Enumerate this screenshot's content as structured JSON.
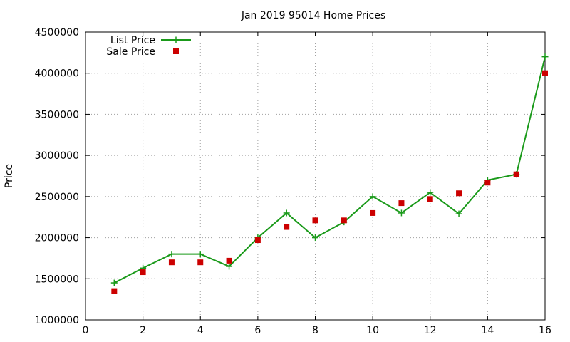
{
  "chart_data": {
    "type": "line",
    "title": "Jan 2019 95014 Home Prices",
    "xlabel": "",
    "ylabel": "Price",
    "xlim": [
      0,
      16
    ],
    "ylim": [
      1000000,
      4500000
    ],
    "x_ticks": [
      "0",
      "2",
      "4",
      "6",
      "8",
      "10",
      "12",
      "14",
      "16"
    ],
    "y_ticks": [
      "1000000",
      "1500000",
      "2000000",
      "2500000",
      "3000000",
      "3500000",
      "4000000",
      "4500000"
    ],
    "grid": true,
    "legend_position": "top-left",
    "series": [
      {
        "name": "List Price",
        "style": "line+cross",
        "color": "#1a9a1a",
        "x": [
          1,
          2,
          3,
          4,
          5,
          6,
          7,
          8,
          9,
          10,
          11,
          12,
          13,
          14,
          15,
          16
        ],
        "values": [
          1450000,
          1630000,
          1800000,
          1800000,
          1650000,
          2000000,
          2300000,
          2000000,
          2190000,
          2500000,
          2300000,
          2550000,
          2290000,
          2700000,
          2770000,
          4200000
        ]
      },
      {
        "name": "Sale Price",
        "style": "square",
        "color": "#cc0000",
        "x": [
          1,
          2,
          3,
          4,
          5,
          6,
          7,
          8,
          9,
          10,
          11,
          12,
          13,
          14,
          15,
          16
        ],
        "values": [
          1350000,
          1580000,
          1700000,
          1700000,
          1720000,
          1970000,
          2130000,
          2210000,
          2210000,
          2300000,
          2420000,
          2470000,
          2540000,
          2670000,
          2770000,
          4000000
        ]
      }
    ]
  }
}
